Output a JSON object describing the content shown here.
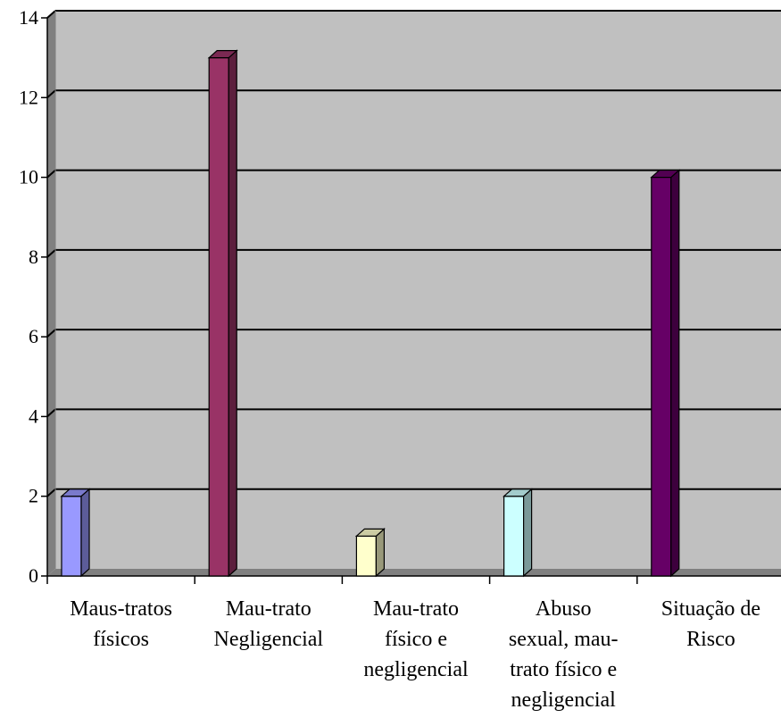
{
  "chart_data": {
    "type": "bar",
    "categories": [
      [
        "Maus-tratos",
        "físicos"
      ],
      [
        "Mau-trato",
        "Negligencial"
      ],
      [
        "Mau-trato",
        "físico e",
        "negligencial"
      ],
      [
        "Abuso",
        "sexual, mau-",
        "trato físico e",
        "negligencial"
      ],
      [
        "Situação de",
        "Risco"
      ]
    ],
    "values": [
      2,
      13,
      1,
      2,
      10
    ],
    "colors": [
      "#9999ff",
      "#993366",
      "#ffffcc",
      "#ccffff",
      "#660066"
    ],
    "ylim": [
      0,
      14
    ],
    "yticks": [
      0,
      2,
      4,
      6,
      8,
      10,
      12,
      14
    ],
    "grid": true,
    "style": "3d",
    "plot_background": "#c0c0c0"
  }
}
